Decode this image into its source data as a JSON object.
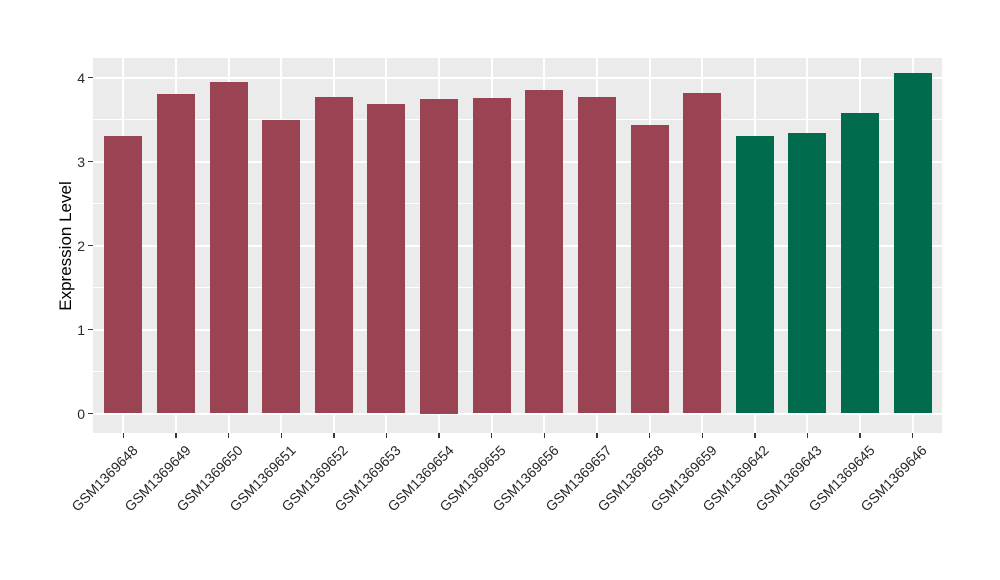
{
  "chart_data": {
    "type": "bar",
    "title": "",
    "xlabel": "",
    "ylabel": "Expression Level",
    "ylim": [
      -0.23,
      4.23
    ],
    "yticks": [
      0,
      1,
      2,
      3,
      4
    ],
    "ytick_labels": [
      "0",
      "1",
      "2",
      "3",
      "4"
    ],
    "grid": "white major and minor horizontal lines, white vertical lines at category centers, on grey panel",
    "legend_position": "none",
    "categories": [
      "GSM1369648",
      "GSM1369649",
      "GSM1369650",
      "GSM1369651",
      "GSM1369652",
      "GSM1369653",
      "GSM1369654",
      "GSM1369655",
      "GSM1369656",
      "GSM1369657",
      "GSM1369658",
      "GSM1369659",
      "GSM1369642",
      "GSM1369643",
      "GSM1369645",
      "GSM1369646"
    ],
    "values": [
      3.3,
      3.8,
      3.95,
      3.49,
      3.77,
      3.68,
      3.75,
      3.76,
      3.85,
      3.77,
      3.43,
      3.81,
      3.3,
      3.34,
      3.58,
      4.05
    ],
    "bar_groups": [
      "group1",
      "group1",
      "group1",
      "group1",
      "group1",
      "group1",
      "group1",
      "group1",
      "group1",
      "group1",
      "group1",
      "group1",
      "group2",
      "group2",
      "group2",
      "group2"
    ],
    "colors": {
      "group1": "#9A4352",
      "group2": "#016B4D"
    },
    "panel_bg": "#EBEBEB",
    "grid_color": "#FFFFFF",
    "axis_text_color": "#2B2B2B",
    "axis_title_color": "#000000"
  }
}
